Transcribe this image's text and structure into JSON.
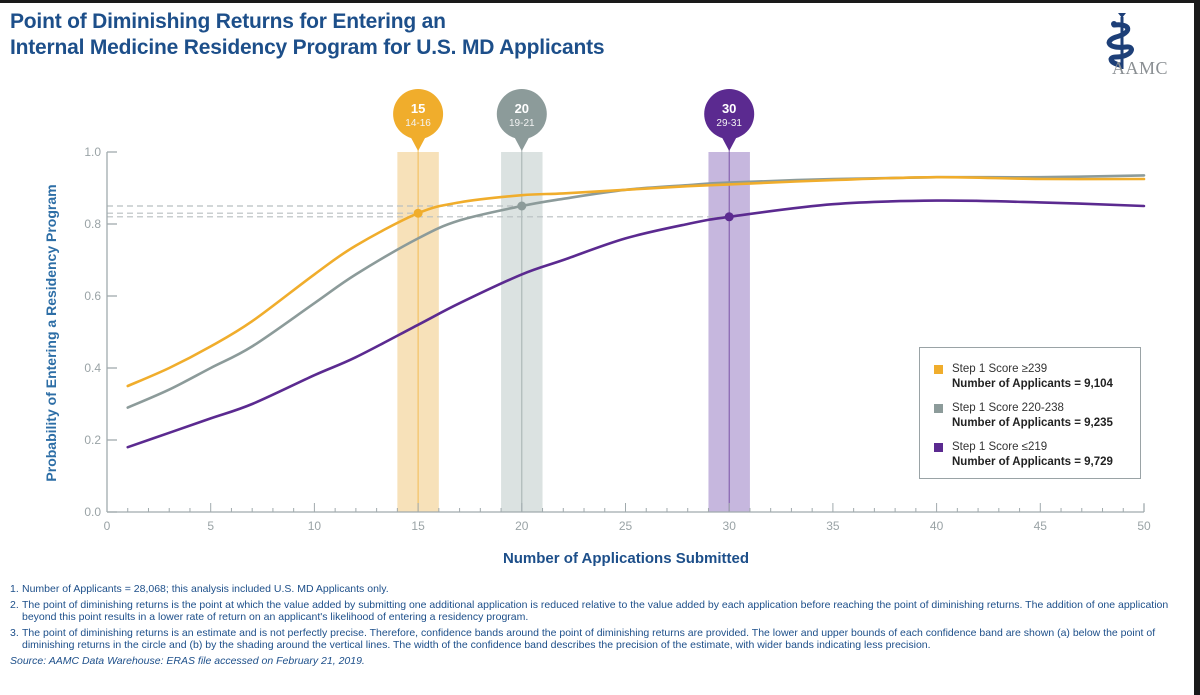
{
  "header": {
    "title_line1": "Point of Diminishing Returns for Entering an",
    "title_line2": "Internal Medicine Residency Program for U.S. MD Applicants",
    "logo_text": "AAMC",
    "logo_icon": "caduceus-icon"
  },
  "colors": {
    "gold": "#f0ad2c",
    "gray": "#8c9b9a",
    "purple": "#5b2a90",
    "title_blue": "#1d4f8a",
    "axis": "#a0aaad"
  },
  "chart_data": {
    "type": "line",
    "title": "Point of Diminishing Returns for Entering an Internal Medicine Residency Program for U.S. MD Applicants",
    "xlabel": "Number of Applications Submitted",
    "ylabel": "Probability of Entering a Residency Program",
    "xlim": [
      0,
      50
    ],
    "ylim": [
      0.0,
      1.0
    ],
    "x_ticks": [
      "0",
      "5",
      "10",
      "15",
      "20",
      "25",
      "30",
      "35",
      "40",
      "45",
      "50"
    ],
    "y_ticks": [
      "0.0",
      "0.2",
      "0.4",
      "0.6",
      "0.8",
      "1.0"
    ],
    "grid": false,
    "legend_position": "right",
    "x": [
      1,
      3,
      5,
      7,
      10,
      12,
      15,
      17,
      20,
      22,
      25,
      28,
      30,
      35,
      40,
      45,
      50
    ],
    "series": [
      {
        "name": "Step 1 Score ≥239",
        "applicants": "Number of Applicants = 9,104",
        "color": "#f0ad2c",
        "values": [
          0.35,
          0.4,
          0.46,
          0.53,
          0.66,
          0.74,
          0.83,
          0.86,
          0.88,
          0.885,
          0.895,
          0.905,
          0.91,
          0.922,
          0.93,
          0.925,
          0.925
        ],
        "diminishing_point": {
          "x": 15,
          "y": 0.83,
          "label": "15",
          "band": [
            14,
            16
          ],
          "band_label": "14-16"
        }
      },
      {
        "name": "Step 1 Score 220-238",
        "applicants": "Number of Applicants = 9,235",
        "color": "#8c9b9a",
        "values": [
          0.29,
          0.34,
          0.4,
          0.46,
          0.58,
          0.66,
          0.76,
          0.81,
          0.85,
          0.87,
          0.895,
          0.908,
          0.915,
          0.925,
          0.93,
          0.93,
          0.935
        ],
        "diminishing_point": {
          "x": 20,
          "y": 0.85,
          "label": "20",
          "band": [
            19,
            21
          ],
          "band_label": "19-21"
        }
      },
      {
        "name": "Step 1 Score ≤219",
        "applicants": "Number of Applicants = 9,729",
        "color": "#5b2a90",
        "values": [
          0.18,
          0.22,
          0.26,
          0.3,
          0.38,
          0.43,
          0.52,
          0.58,
          0.66,
          0.7,
          0.76,
          0.8,
          0.82,
          0.855,
          0.865,
          0.86,
          0.85
        ],
        "diminishing_point": {
          "x": 30,
          "y": 0.82,
          "label": "30",
          "band": [
            29,
            31
          ],
          "band_label": "29-31"
        }
      }
    ]
  },
  "notes": [
    {
      "num": "1.",
      "text": "Number of Applicants = 28,068; this analysis included U.S. MD Applicants only."
    },
    {
      "num": "2.",
      "text": "The point of diminishing returns is the point at which the value added by submitting one additional application is reduced relative to the value added by each application before reaching the point of diminishing returns. The addition of one application beyond this point results in a lower rate of return on an applicant's likelihood of entering a residency program."
    },
    {
      "num": "3.",
      "text": "The point of diminishing returns is an estimate and is not perfectly precise. Therefore, confidence bands around the point of diminishing returns are provided. The lower and upper bounds of each confidence band are shown (a) below the point of diminishing returns in the circle and (b) by the shading around the vertical lines. The width of the confidence band describes the precision of the estimate, with wider bands indicating less precision."
    }
  ],
  "source": "Source: AAMC Data Warehouse: ERAS file accessed on February 21, 2019."
}
